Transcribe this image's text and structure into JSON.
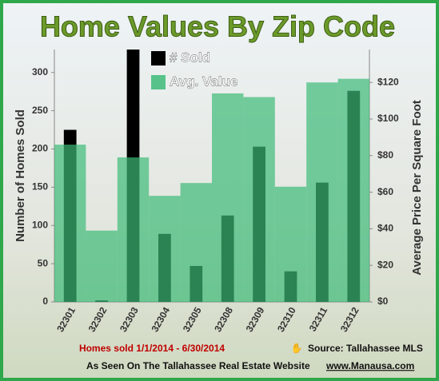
{
  "chart_data": {
    "type": "bar",
    "title": "Home Values By Zip Code",
    "categories": [
      "32301",
      "32302",
      "32303",
      "32304",
      "32305",
      "32308",
      "32309",
      "32310",
      "32311",
      "32312"
    ],
    "series": [
      {
        "name": "# Sold",
        "color": "#000000",
        "values": [
          225,
          2,
          330,
          89,
          47,
          113,
          203,
          40,
          156,
          276
        ]
      },
      {
        "name": "Avg. Value",
        "color": "#3dbb78",
        "axis": "y2",
        "values": [
          86,
          39,
          79,
          58,
          65,
          114,
          112,
          63,
          120,
          122
        ]
      }
    ],
    "ylabel": "Number of Homes Sold",
    "y2label": "Average Price Per Square Foot",
    "ylim": [
      0,
      330
    ],
    "yticks": [
      0,
      50,
      100,
      150,
      200,
      250,
      300
    ],
    "y2lim": [
      0,
      138
    ],
    "y2ticks": [
      {
        "value": 0,
        "label": "$0"
      },
      {
        "value": 20,
        "label": "$20"
      },
      {
        "value": 40,
        "label": "$40"
      },
      {
        "value": 60,
        "label": "$60"
      },
      {
        "value": 80,
        "label": "$80"
      },
      {
        "value": 100,
        "label": "$100"
      },
      {
        "value": 120,
        "label": "$120"
      }
    ],
    "annotations": [
      "Homes sold 1/1/2014 - 6/30/2014",
      "Source: Tallahassee MLS",
      "As Seen On The Tallahassee Real Estate Website",
      "www.Manausa.com"
    ]
  }
}
